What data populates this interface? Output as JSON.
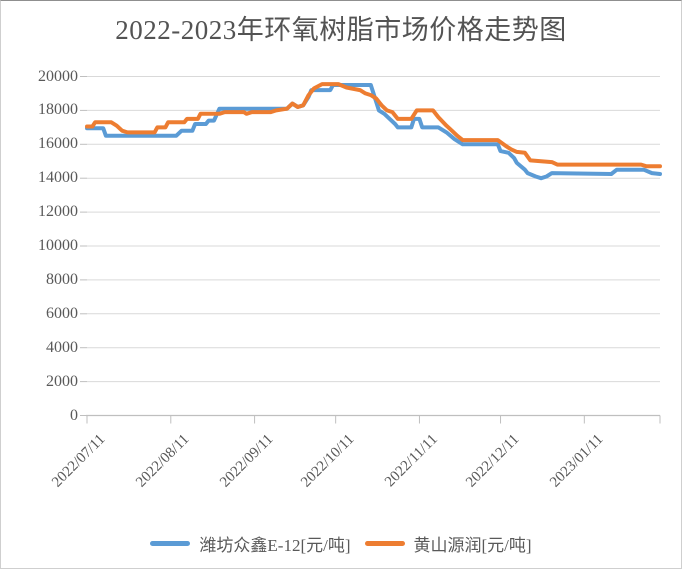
{
  "colors": {
    "background": "#FFFFFF",
    "title_text": "#535353",
    "axis_text": "#595959",
    "gridline": "#D9D9D9",
    "axis_line": "#BFBFBF",
    "series_blue": "#5B9BD5",
    "series_orange": "#ED7D31"
  },
  "chart_data": {
    "type": "line",
    "title": "2022-2023年环氧树脂市场价格走势图",
    "grid": true,
    "legend_position": "bottom",
    "x_unit": "days since 2022/07/11",
    "x_axis": {
      "tick_labels": [
        "2022/07/11",
        "2022/08/11",
        "2022/09/11",
        "2022/10/11",
        "2022/11/11",
        "2022/12/11",
        "2023/01/11"
      ],
      "tick_day_offsets": [
        0,
        31,
        62,
        92,
        123,
        153,
        184
      ],
      "day_span": [
        0,
        212
      ],
      "end_tick_day": 212
    },
    "y_axis": {
      "min": 0,
      "max": 20000,
      "step": 2000,
      "tick_labels": [
        "0",
        "2000",
        "4000",
        "6000",
        "8000",
        "10000",
        "12000",
        "14000",
        "16000",
        "18000",
        "20000"
      ]
    },
    "series": [
      {
        "name": "潍坊众鑫E-12[元/吨]",
        "color": "#5B9BD5",
        "points": [
          [
            0,
            16950
          ],
          [
            6,
            16950
          ],
          [
            7,
            16500
          ],
          [
            33,
            16500
          ],
          [
            35,
            16800
          ],
          [
            39,
            16800
          ],
          [
            40,
            17200
          ],
          [
            44,
            17200
          ],
          [
            45,
            17400
          ],
          [
            47,
            17400
          ],
          [
            49,
            18100
          ],
          [
            74,
            18100
          ],
          [
            76,
            18400
          ],
          [
            78,
            18200
          ],
          [
            80,
            18300
          ],
          [
            82,
            18800
          ],
          [
            83,
            19200
          ],
          [
            90,
            19200
          ],
          [
            91,
            19500
          ],
          [
            105,
            19500
          ],
          [
            107,
            18500
          ],
          [
            108,
            18000
          ],
          [
            110,
            17800
          ],
          [
            112,
            17500
          ],
          [
            114,
            17200
          ],
          [
            115,
            17000
          ],
          [
            120,
            17000
          ],
          [
            121,
            17500
          ],
          [
            123,
            17500
          ],
          [
            124,
            17000
          ],
          [
            130,
            17000
          ],
          [
            133,
            16700
          ],
          [
            136,
            16300
          ],
          [
            139,
            16000
          ],
          [
            152,
            16000
          ],
          [
            153,
            15600
          ],
          [
            156,
            15500
          ],
          [
            158,
            15200
          ],
          [
            159,
            14900
          ],
          [
            162,
            14500
          ],
          [
            163,
            14300
          ],
          [
            166,
            14100
          ],
          [
            168,
            14000
          ],
          [
            170,
            14100
          ],
          [
            172,
            14300
          ],
          [
            194,
            14250
          ],
          [
            196,
            14500
          ],
          [
            206,
            14500
          ],
          [
            209,
            14300
          ],
          [
            212,
            14250
          ]
        ]
      },
      {
        "name": "黄山源润[元/吨]",
        "color": "#ED7D31",
        "points": [
          [
            0,
            17050
          ],
          [
            2,
            17050
          ],
          [
            3,
            17300
          ],
          [
            9,
            17300
          ],
          [
            11,
            17100
          ],
          [
            13,
            16800
          ],
          [
            15,
            16700
          ],
          [
            25,
            16700
          ],
          [
            26,
            17000
          ],
          [
            29,
            17000
          ],
          [
            30,
            17300
          ],
          [
            36,
            17300
          ],
          [
            37,
            17500
          ],
          [
            41,
            17500
          ],
          [
            42,
            17800
          ],
          [
            49,
            17800
          ],
          [
            51,
            17900
          ],
          [
            58,
            17900
          ],
          [
            59,
            17800
          ],
          [
            61,
            17900
          ],
          [
            68,
            17900
          ],
          [
            70,
            18000
          ],
          [
            74,
            18100
          ],
          [
            76,
            18400
          ],
          [
            78,
            18200
          ],
          [
            80,
            18300
          ],
          [
            82,
            18900
          ],
          [
            84,
            19300
          ],
          [
            87,
            19550
          ],
          [
            93,
            19550
          ],
          [
            96,
            19350
          ],
          [
            101,
            19200
          ],
          [
            103,
            19000
          ],
          [
            105,
            18900
          ],
          [
            107,
            18700
          ],
          [
            109,
            18300
          ],
          [
            111,
            18000
          ],
          [
            113,
            17900
          ],
          [
            115,
            17500
          ],
          [
            120,
            17500
          ],
          [
            122,
            18000
          ],
          [
            128,
            18000
          ],
          [
            130,
            17600
          ],
          [
            133,
            17100
          ],
          [
            135,
            16800
          ],
          [
            137,
            16500
          ],
          [
            139,
            16250
          ],
          [
            152,
            16250
          ],
          [
            155,
            15900
          ],
          [
            157,
            15700
          ],
          [
            159,
            15550
          ],
          [
            162,
            15500
          ],
          [
            164,
            15050
          ],
          [
            172,
            14950
          ],
          [
            174,
            14800
          ],
          [
            205,
            14800
          ],
          [
            207,
            14700
          ],
          [
            212,
            14700
          ]
        ]
      }
    ]
  }
}
